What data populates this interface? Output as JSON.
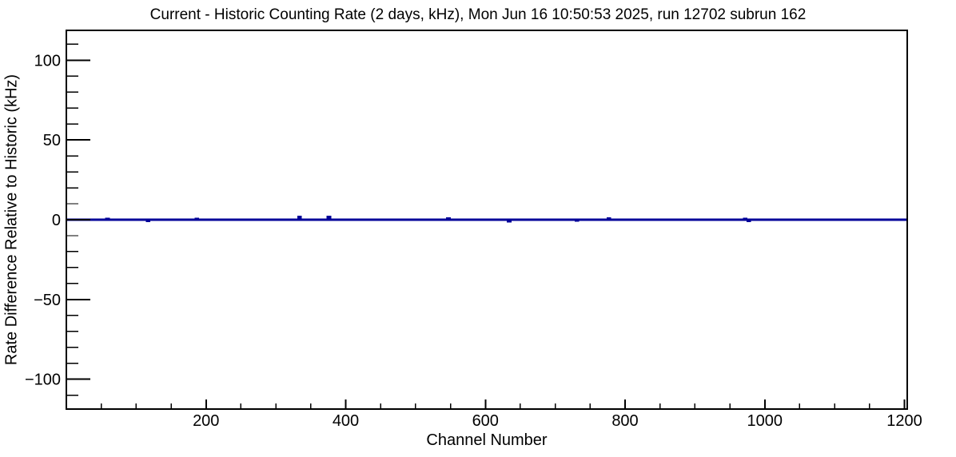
{
  "chart_data": {
    "type": "line",
    "title": "Current - Historic Counting Rate (2 days, kHz), Mon Jun 16 10:50:53 2025, run 12702 subrun 162",
    "xlabel": "Channel Number",
    "ylabel": "Rate Difference Relative to Historic (kHz)",
    "xlim": [
      0,
      1204
    ],
    "ylim": [
      -118.7,
      118.7
    ],
    "x_major_ticks": [
      200,
      400,
      600,
      800,
      1000,
      1200
    ],
    "x_tick_labels": [
      "200",
      "400",
      "600",
      "800",
      "1000",
      "1200"
    ],
    "x_minor_tick_step": 50,
    "y_major_ticks": [
      100,
      50,
      0,
      -50,
      -100
    ],
    "y_tick_labels": [
      "100",
      "50",
      "0",
      "−50",
      "−100"
    ],
    "y_minor_tick_step": 10,
    "grid": false,
    "legend": false,
    "series": [
      {
        "name": "rate-difference-vs-channel",
        "color": "#000099",
        "baseline": 0,
        "description": "Histogram is flat at 0 kHz across all channels except small narrow spikes",
        "anomalies": [
          {
            "channel": 59,
            "value": 0.6
          },
          {
            "channel": 117,
            "value": -0.7
          },
          {
            "channel": 187,
            "value": 0.6
          },
          {
            "channel": 334,
            "value": 1.8
          },
          {
            "channel": 376,
            "value": 1.8
          },
          {
            "channel": 547,
            "value": 0.8
          },
          {
            "channel": 634,
            "value": -1.0
          },
          {
            "channel": 731,
            "value": -0.6
          },
          {
            "channel": 777,
            "value": 0.7
          },
          {
            "channel": 972,
            "value": 0.4
          },
          {
            "channel": 977,
            "value": -0.8
          }
        ]
      }
    ]
  },
  "colors": {
    "background": "#ffffff",
    "axis": "#000000",
    "text": "#000000",
    "series_line": "#000099"
  }
}
